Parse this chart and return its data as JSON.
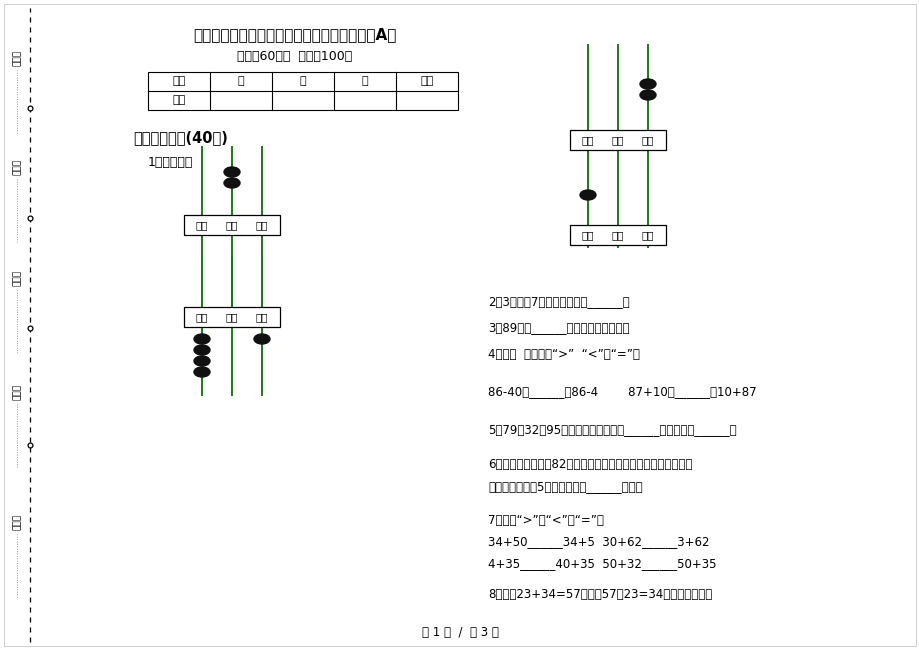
{
  "title": "一年级下学期小学数学积累考点期末模拟试卷A卷",
  "subtitle": "时间：60分钟  满分：100分",
  "bg_color": "#ffffff",
  "text_color": "#000000",
  "left_labels": [
    "考号：",
    "考场：",
    "姓名：",
    "班级：",
    "学校："
  ],
  "table_headers": [
    "题号",
    "一",
    "二",
    "三",
    "总分"
  ],
  "table_row": [
    "得分"
  ],
  "section1_title": "一、基础练习(40分)",
  "q1_text": "1．看图写数",
  "q2_text": "2．3个十、7个一组成的数是______。",
  "q3_text": "3．89再加______就是最大的两位数。",
  "q4_text": "4．在（  ）里填上“>”  “<”或“=”。",
  "q4b_text": "86-40（______）86-4        87+10（______）10+87",
  "q5_text": "5．79、32、95三个数中，最大的是______，最小的是______。",
  "q6_line1": "6．本学期小宁得了82朵花，是班里的第一名，小齐是第二名，",
  "q6_line2": "得的花比小宁少5朵，小齐得了______朵花。",
  "q7_text": "7．填上“>”、“<”或“=”。",
  "q7b_line1": "34+50______34+5  30+62______3+62",
  "q7b_line2": "4+35______40+35  50+32______50+35",
  "q8_text": "8．因为23+34=57，所以57－23=34。（判断对错）",
  "footer": "第 1 页  /  共 3 页",
  "abacus_col_labels": [
    "百位",
    "十位",
    "个位"
  ]
}
